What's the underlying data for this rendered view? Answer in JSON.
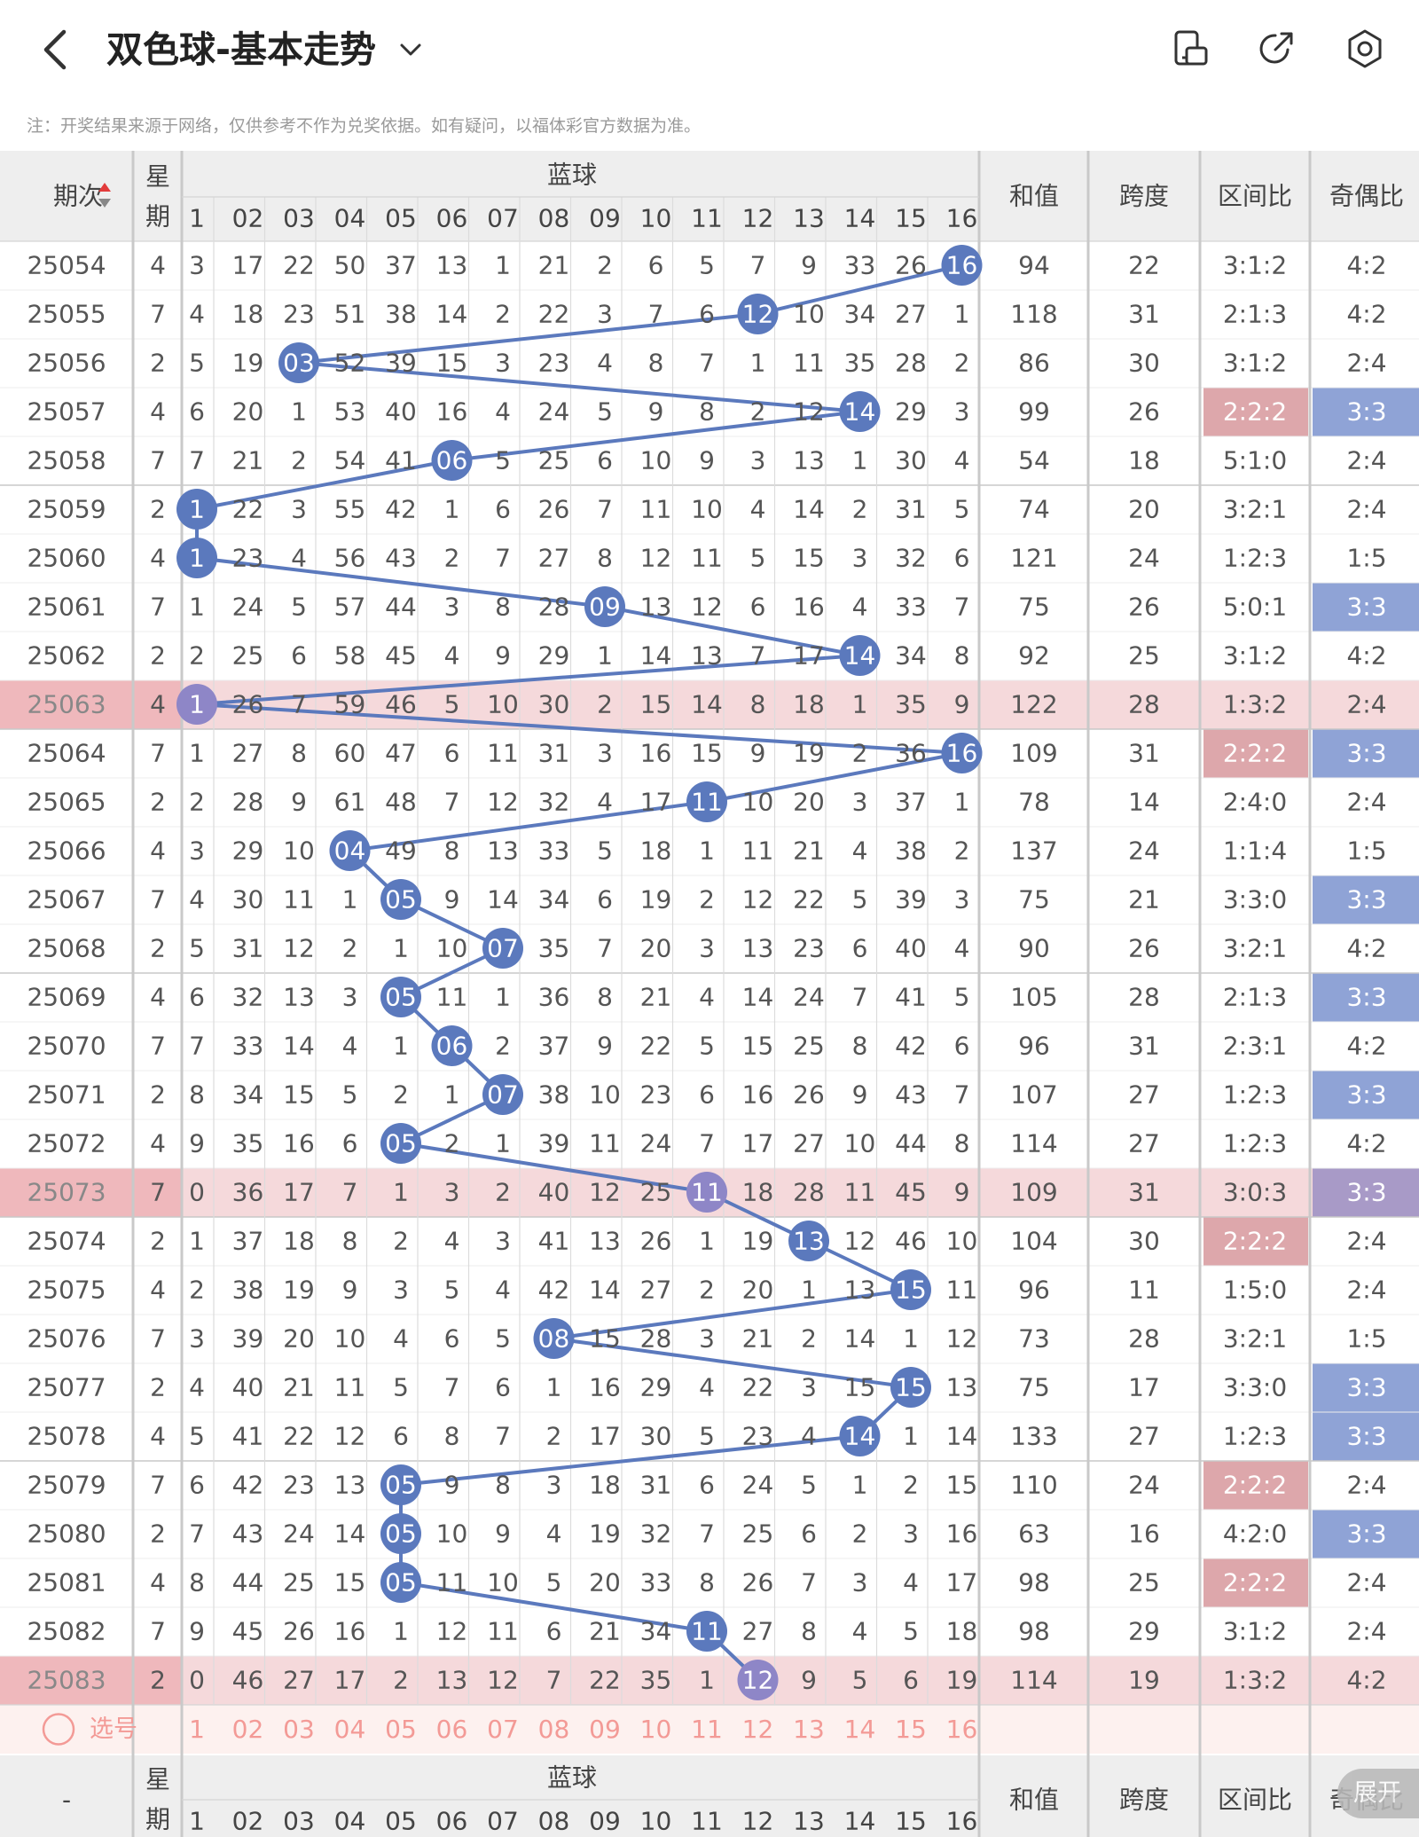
{
  "header": {
    "title": "双色球-基本走势",
    "icons": [
      "back-chevron-icon",
      "dropdown-chevron-icon",
      "phone-layout-icon",
      "share-icon",
      "settings-icon"
    ]
  },
  "notice": "注：开奖结果来源于网络，仅供参考不作为兑奖依据。如有疑问，以福体彩官方数据为准。",
  "table": {
    "headers": {
      "issue": "期次",
      "weekday": [
        "星",
        "期"
      ],
      "blue_group": "蓝球",
      "blue_cols": [
        "1",
        "02",
        "03",
        "04",
        "05",
        "06",
        "07",
        "08",
        "09",
        "10",
        "11",
        "12",
        "13",
        "14",
        "15",
        "16"
      ],
      "sum": "和值",
      "span": "跨度",
      "zone_ratio": "区间比",
      "odd_even": "奇偶比"
    },
    "rows": [
      {
        "issue": "25054",
        "wk": "4",
        "miss": [
          "3",
          "17",
          "22",
          "50",
          "37",
          "13",
          "1",
          "21",
          "2",
          "6",
          "5",
          "7",
          "9",
          "33",
          "26",
          "16"
        ],
        "hit": 16,
        "sum": "94",
        "span": "22",
        "zone": "3:1:2",
        "oe": "4:2"
      },
      {
        "issue": "25055",
        "wk": "7",
        "miss": [
          "4",
          "18",
          "23",
          "51",
          "38",
          "14",
          "2",
          "22",
          "3",
          "7",
          "6",
          "12",
          "10",
          "34",
          "27",
          "1"
        ],
        "hit": 12,
        "sum": "118",
        "span": "31",
        "zone": "2:1:3",
        "oe": "4:2"
      },
      {
        "issue": "25056",
        "wk": "2",
        "miss": [
          "5",
          "19",
          "03",
          "52",
          "39",
          "15",
          "3",
          "23",
          "4",
          "8",
          "7",
          "1",
          "11",
          "35",
          "28",
          "2"
        ],
        "hit": 3,
        "sum": "86",
        "span": "30",
        "zone": "3:1:2",
        "oe": "2:4"
      },
      {
        "issue": "25057",
        "wk": "4",
        "miss": [
          "6",
          "20",
          "1",
          "53",
          "40",
          "16",
          "4",
          "24",
          "5",
          "9",
          "8",
          "2",
          "12",
          "14",
          "29",
          "3"
        ],
        "hit": 14,
        "sum": "99",
        "span": "26",
        "zone": "2:2:2",
        "oe": "3:3"
      },
      {
        "issue": "25058",
        "wk": "7",
        "miss": [
          "7",
          "21",
          "2",
          "54",
          "41",
          "06",
          "5",
          "25",
          "6",
          "10",
          "9",
          "3",
          "13",
          "1",
          "30",
          "4"
        ],
        "hit": 6,
        "sum": "54",
        "span": "18",
        "zone": "5:1:0",
        "oe": "2:4"
      },
      {
        "issue": "25059",
        "wk": "2",
        "miss": [
          "1",
          "22",
          "3",
          "55",
          "42",
          "1",
          "6",
          "26",
          "7",
          "11",
          "10",
          "4",
          "14",
          "2",
          "31",
          "5"
        ],
        "hit": 1,
        "sum": "74",
        "span": "20",
        "zone": "3:2:1",
        "oe": "2:4"
      },
      {
        "issue": "25060",
        "wk": "4",
        "miss": [
          "1",
          "23",
          "4",
          "56",
          "43",
          "2",
          "7",
          "27",
          "8",
          "12",
          "11",
          "5",
          "15",
          "3",
          "32",
          "6"
        ],
        "hit": 1,
        "sum": "121",
        "span": "24",
        "zone": "1:2:3",
        "oe": "1:5"
      },
      {
        "issue": "25061",
        "wk": "7",
        "miss": [
          "1",
          "24",
          "5",
          "57",
          "44",
          "3",
          "8",
          "28",
          "09",
          "13",
          "12",
          "6",
          "16",
          "4",
          "33",
          "7"
        ],
        "hit": 9,
        "sum": "75",
        "span": "26",
        "zone": "5:0:1",
        "oe": "3:3"
      },
      {
        "issue": "25062",
        "wk": "2",
        "miss": [
          "2",
          "25",
          "6",
          "58",
          "45",
          "4",
          "9",
          "29",
          "1",
          "14",
          "13",
          "7",
          "17",
          "14",
          "34",
          "8"
        ],
        "hit": 14,
        "sum": "92",
        "span": "25",
        "zone": "3:1:2",
        "oe": "4:2"
      },
      {
        "issue": "25063",
        "wk": "4",
        "miss": [
          "1",
          "26",
          "7",
          "59",
          "46",
          "5",
          "10",
          "30",
          "2",
          "15",
          "14",
          "8",
          "18",
          "1",
          "35",
          "9"
        ],
        "hit": 1,
        "sum": "122",
        "span": "28",
        "zone": "1:3:2",
        "oe": "2:4"
      },
      {
        "issue": "25064",
        "wk": "7",
        "miss": [
          "1",
          "27",
          "8",
          "60",
          "47",
          "6",
          "11",
          "31",
          "3",
          "16",
          "15",
          "9",
          "19",
          "2",
          "36",
          "16"
        ],
        "hit": 16,
        "sum": "109",
        "span": "31",
        "zone": "2:2:2",
        "oe": "3:3"
      },
      {
        "issue": "25065",
        "wk": "2",
        "miss": [
          "2",
          "28",
          "9",
          "61",
          "48",
          "7",
          "12",
          "32",
          "4",
          "17",
          "11",
          "10",
          "20",
          "3",
          "37",
          "1"
        ],
        "hit": 11,
        "sum": "78",
        "span": "14",
        "zone": "2:4:0",
        "oe": "2:4"
      },
      {
        "issue": "25066",
        "wk": "4",
        "miss": [
          "3",
          "29",
          "10",
          "04",
          "49",
          "8",
          "13",
          "33",
          "5",
          "18",
          "1",
          "11",
          "21",
          "4",
          "38",
          "2"
        ],
        "hit": 4,
        "sum": "137",
        "span": "24",
        "zone": "1:1:4",
        "oe": "1:5"
      },
      {
        "issue": "25067",
        "wk": "7",
        "miss": [
          "4",
          "30",
          "11",
          "1",
          "05",
          "9",
          "14",
          "34",
          "6",
          "19",
          "2",
          "12",
          "22",
          "5",
          "39",
          "3"
        ],
        "hit": 5,
        "sum": "75",
        "span": "21",
        "zone": "3:3:0",
        "oe": "3:3"
      },
      {
        "issue": "25068",
        "wk": "2",
        "miss": [
          "5",
          "31",
          "12",
          "2",
          "1",
          "10",
          "07",
          "35",
          "7",
          "20",
          "3",
          "13",
          "23",
          "6",
          "40",
          "4"
        ],
        "hit": 7,
        "sum": "90",
        "span": "26",
        "zone": "3:2:1",
        "oe": "4:2"
      },
      {
        "issue": "25069",
        "wk": "4",
        "miss": [
          "6",
          "32",
          "13",
          "3",
          "05",
          "11",
          "1",
          "36",
          "8",
          "21",
          "4",
          "14",
          "24",
          "7",
          "41",
          "5"
        ],
        "hit": 5,
        "sum": "105",
        "span": "28",
        "zone": "2:1:3",
        "oe": "3:3"
      },
      {
        "issue": "25070",
        "wk": "7",
        "miss": [
          "7",
          "33",
          "14",
          "4",
          "1",
          "06",
          "2",
          "37",
          "9",
          "22",
          "5",
          "15",
          "25",
          "8",
          "42",
          "6"
        ],
        "hit": 6,
        "sum": "96",
        "span": "31",
        "zone": "2:3:1",
        "oe": "4:2"
      },
      {
        "issue": "25071",
        "wk": "2",
        "miss": [
          "8",
          "34",
          "15",
          "5",
          "2",
          "1",
          "07",
          "38",
          "10",
          "23",
          "6",
          "16",
          "26",
          "9",
          "43",
          "7"
        ],
        "hit": 7,
        "sum": "107",
        "span": "27",
        "zone": "1:2:3",
        "oe": "3:3"
      },
      {
        "issue": "25072",
        "wk": "4",
        "miss": [
          "9",
          "35",
          "16",
          "6",
          "05",
          "2",
          "1",
          "39",
          "11",
          "24",
          "7",
          "17",
          "27",
          "10",
          "44",
          "8"
        ],
        "hit": 5,
        "sum": "114",
        "span": "27",
        "zone": "1:2:3",
        "oe": "4:2"
      },
      {
        "issue": "25073",
        "wk": "7",
        "miss": [
          "0",
          "36",
          "17",
          "7",
          "1",
          "3",
          "2",
          "40",
          "12",
          "25",
          "11",
          "18",
          "28",
          "11",
          "45",
          "9"
        ],
        "hit": 11,
        "sum": "109",
        "span": "31",
        "zone": "3:0:3",
        "oe": "3:3"
      },
      {
        "issue": "25074",
        "wk": "2",
        "miss": [
          "1",
          "37",
          "18",
          "8",
          "2",
          "4",
          "3",
          "41",
          "13",
          "26",
          "1",
          "19",
          "13",
          "12",
          "46",
          "10"
        ],
        "hit": 13,
        "sum": "104",
        "span": "30",
        "zone": "2:2:2",
        "oe": "2:4"
      },
      {
        "issue": "25075",
        "wk": "4",
        "miss": [
          "2",
          "38",
          "19",
          "9",
          "3",
          "5",
          "4",
          "42",
          "14",
          "27",
          "2",
          "20",
          "1",
          "13",
          "15",
          "11"
        ],
        "hit": 15,
        "sum": "96",
        "span": "11",
        "zone": "1:5:0",
        "oe": "2:4"
      },
      {
        "issue": "25076",
        "wk": "7",
        "miss": [
          "3",
          "39",
          "20",
          "10",
          "4",
          "6",
          "5",
          "08",
          "15",
          "28",
          "3",
          "21",
          "2",
          "14",
          "1",
          "12"
        ],
        "hit": 8,
        "sum": "73",
        "span": "28",
        "zone": "3:2:1",
        "oe": "1:5"
      },
      {
        "issue": "25077",
        "wk": "2",
        "miss": [
          "4",
          "40",
          "21",
          "11",
          "5",
          "7",
          "6",
          "1",
          "16",
          "29",
          "4",
          "22",
          "3",
          "15",
          "15",
          "13"
        ],
        "hit": 15,
        "sum": "75",
        "span": "17",
        "zone": "3:3:0",
        "oe": "3:3"
      },
      {
        "issue": "25078",
        "wk": "4",
        "miss": [
          "5",
          "41",
          "22",
          "12",
          "6",
          "8",
          "7",
          "2",
          "17",
          "30",
          "5",
          "23",
          "4",
          "14",
          "1",
          "14"
        ],
        "hit": 14,
        "sum": "133",
        "span": "27",
        "zone": "1:2:3",
        "oe": "3:3"
      },
      {
        "issue": "25079",
        "wk": "7",
        "miss": [
          "6",
          "42",
          "23",
          "13",
          "05",
          "9",
          "8",
          "3",
          "18",
          "31",
          "6",
          "24",
          "5",
          "1",
          "2",
          "15"
        ],
        "hit": 5,
        "sum": "110",
        "span": "24",
        "zone": "2:2:2",
        "oe": "2:4"
      },
      {
        "issue": "25080",
        "wk": "2",
        "miss": [
          "7",
          "43",
          "24",
          "14",
          "05",
          "10",
          "9",
          "4",
          "19",
          "32",
          "7",
          "25",
          "6",
          "2",
          "3",
          "16"
        ],
        "hit": 5,
        "sum": "63",
        "span": "16",
        "zone": "4:2:0",
        "oe": "3:3"
      },
      {
        "issue": "25081",
        "wk": "4",
        "miss": [
          "8",
          "44",
          "25",
          "15",
          "05",
          "11",
          "10",
          "5",
          "20",
          "33",
          "8",
          "26",
          "7",
          "3",
          "4",
          "17"
        ],
        "hit": 5,
        "sum": "98",
        "span": "25",
        "zone": "2:2:2",
        "oe": "2:4"
      },
      {
        "issue": "25082",
        "wk": "7",
        "miss": [
          "9",
          "45",
          "26",
          "16",
          "1",
          "12",
          "11",
          "6",
          "21",
          "34",
          "11",
          "27",
          "8",
          "4",
          "5",
          "18"
        ],
        "hit": 11,
        "sum": "98",
        "span": "29",
        "zone": "3:1:2",
        "oe": "2:4"
      },
      {
        "issue": "25083",
        "wk": "2",
        "miss": [
          "0",
          "46",
          "27",
          "17",
          "2",
          "13",
          "12",
          "7",
          "22",
          "35",
          "1",
          "12",
          "9",
          "5",
          "6",
          "19"
        ],
        "hit": 12,
        "sum": "114",
        "span": "19",
        "zone": "1:3:2",
        "oe": "4:2"
      }
    ],
    "highlight_rows": [
      "25063",
      "25073",
      "25083"
    ],
    "select_row": {
      "label": "选号",
      "nums": [
        "1",
        "02",
        "03",
        "04",
        "05",
        "06",
        "07",
        "08",
        "09",
        "10",
        "11",
        "12",
        "13",
        "14",
        "15",
        "16"
      ]
    },
    "footer": {
      "issue": "-"
    }
  },
  "expand_button": "展开",
  "colors": {
    "accent_blue": "#5b79bd",
    "highlight_row": "#f5d9db",
    "highlight_issue": "#efb8bc",
    "zone_hot": "#dda7ab",
    "oe_blue": "#8fa3d6",
    "oe_purple": "#a89ac7",
    "header_bg": "#eeeeee",
    "select_row_bg": "#fdf1ef",
    "select_text": "#f39a96"
  }
}
